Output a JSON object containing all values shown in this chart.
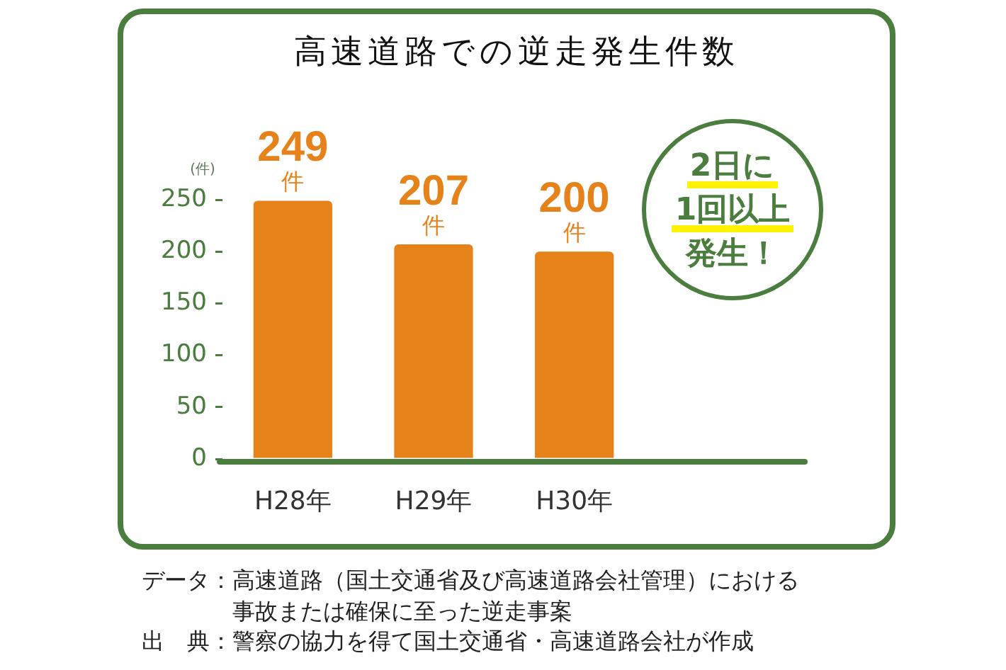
{
  "chart_data": {
    "type": "bar",
    "title": "高速道路での逆走発生件数",
    "ylabel": "(件)",
    "categories": [
      "H28年",
      "H29年",
      "H30年"
    ],
    "values": [
      249,
      207,
      200
    ],
    "color": "#e6821a",
    "value_labels": [
      "249件",
      "207件",
      "200件"
    ],
    "ylim": [
      0,
      250
    ],
    "yticks": [
      0,
      50,
      100,
      150,
      200,
      250
    ],
    "annotations": [
      "2日に",
      "1回以上",
      "発生！",
      "データ：高速道路（国土交通省及び高速道路会社管理）における事故または確保に至った逆走事案",
      "出　典：警察の協力を得て国土交通省・高速道路会社が作成"
    ]
  }
}
